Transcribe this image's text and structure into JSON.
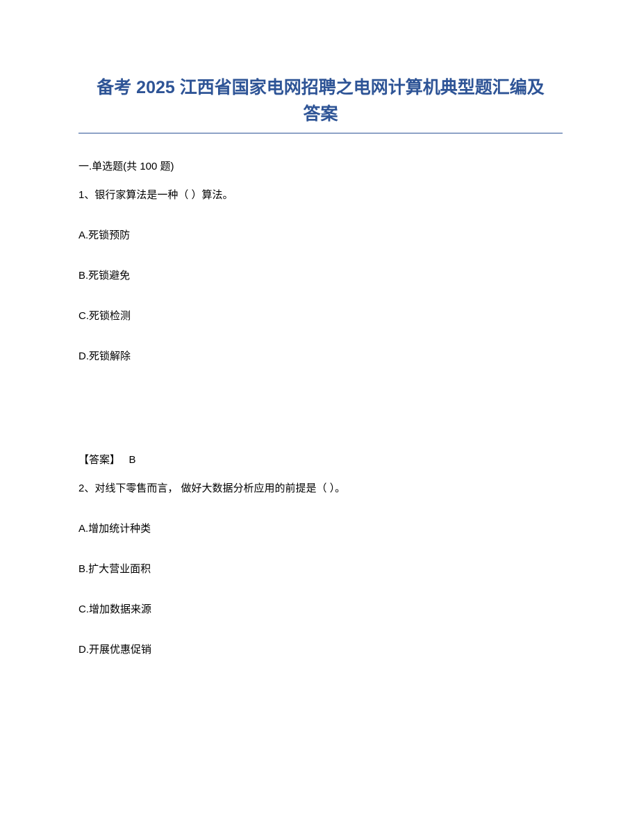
{
  "title": {
    "line1": "备考 2025 江西省国家电网招聘之电网计算机典型题汇编及",
    "line2": "答案",
    "color": "#2e5496",
    "fontsize": 25
  },
  "section_header": "一.单选题(共 100 题)",
  "body_fontsize": 15,
  "body_color": "#000000",
  "background_color": "#ffffff",
  "questions": [
    {
      "number": "1",
      "text": "1、银行家算法是一种（ ）算法。",
      "options": [
        "A.死锁预防",
        "B.死锁避免",
        "C.死锁检测",
        "D.死锁解除"
      ],
      "answer_label": "【答案】",
      "answer_value": "B"
    },
    {
      "number": "2",
      "text": "2、对线下零售而言， 做好大数据分析应用的前提是（ ）。",
      "options": [
        "A.增加统计种类",
        "B.扩大营业面积",
        "C.增加数据来源",
        "D.开展优惠促销"
      ]
    }
  ]
}
